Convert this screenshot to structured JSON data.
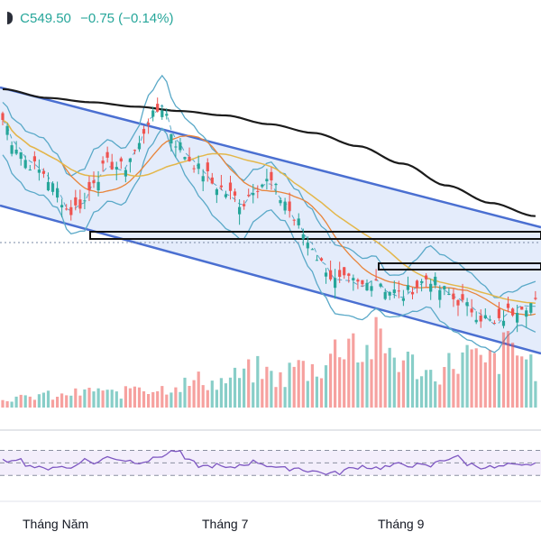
{
  "header": {
    "close_value": "C549.50",
    "change_text": "−0.75 (−0.14%)"
  },
  "colors": {
    "up": "#26a69a",
    "down": "#ef5350",
    "channel_fill": "#dbe6fa",
    "channel_line": "#4a6fd1",
    "bollinger": "#5aa9c8",
    "ma_long": "#1b1b1b",
    "ma_mid": "#e3b74b",
    "ma_short": "#e8843a",
    "rsi": "#7e57c2"
  },
  "chart_data": [
    {
      "type": "candlestick",
      "title": "",
      "x_tick_labels": [
        "Tháng Năm",
        "Tháng 7",
        "Tháng 9"
      ],
      "last_close": 549.5,
      "change": -0.75,
      "change_percent": -0.14,
      "overlays": [
        "descending-channel",
        "bollinger-bands",
        "moving-average-long",
        "moving-average-mid",
        "moving-average-short",
        "horizontal-levels"
      ],
      "close_trend": [
        585,
        579,
        575,
        573,
        569,
        564,
        566,
        572,
        575,
        574,
        578,
        585,
        588,
        580,
        576,
        573,
        570,
        568,
        566,
        570,
        571,
        567,
        562,
        557,
        552,
        548,
        548,
        547,
        549,
        546,
        545,
        547,
        549,
        546,
        544,
        542,
        540,
        538,
        541,
        543,
        543
      ]
    },
    {
      "type": "bar",
      "title": "",
      "series_name": "Volume",
      "values_relative": [
        2,
        2,
        2,
        3,
        2,
        3,
        3,
        4,
        3,
        3,
        5,
        4,
        4,
        5,
        5,
        6,
        5,
        6,
        7,
        8,
        7,
        6,
        9,
        8,
        9,
        12,
        16,
        11,
        14,
        12,
        10,
        9,
        7,
        8,
        10,
        11,
        9,
        10,
        13,
        11,
        9
      ]
    },
    {
      "type": "line",
      "title": "",
      "series_name": "RSI",
      "band": [
        30,
        70
      ],
      "values": [
        52,
        58,
        46,
        40,
        45,
        41,
        55,
        50,
        60,
        55,
        52,
        54,
        62,
        70,
        52,
        44,
        46,
        40,
        48,
        52,
        46,
        40,
        42,
        38,
        34,
        33,
        40,
        45,
        42,
        44,
        48,
        46,
        44,
        55,
        60,
        48,
        44,
        42,
        46,
        44,
        50
      ]
    }
  ]
}
